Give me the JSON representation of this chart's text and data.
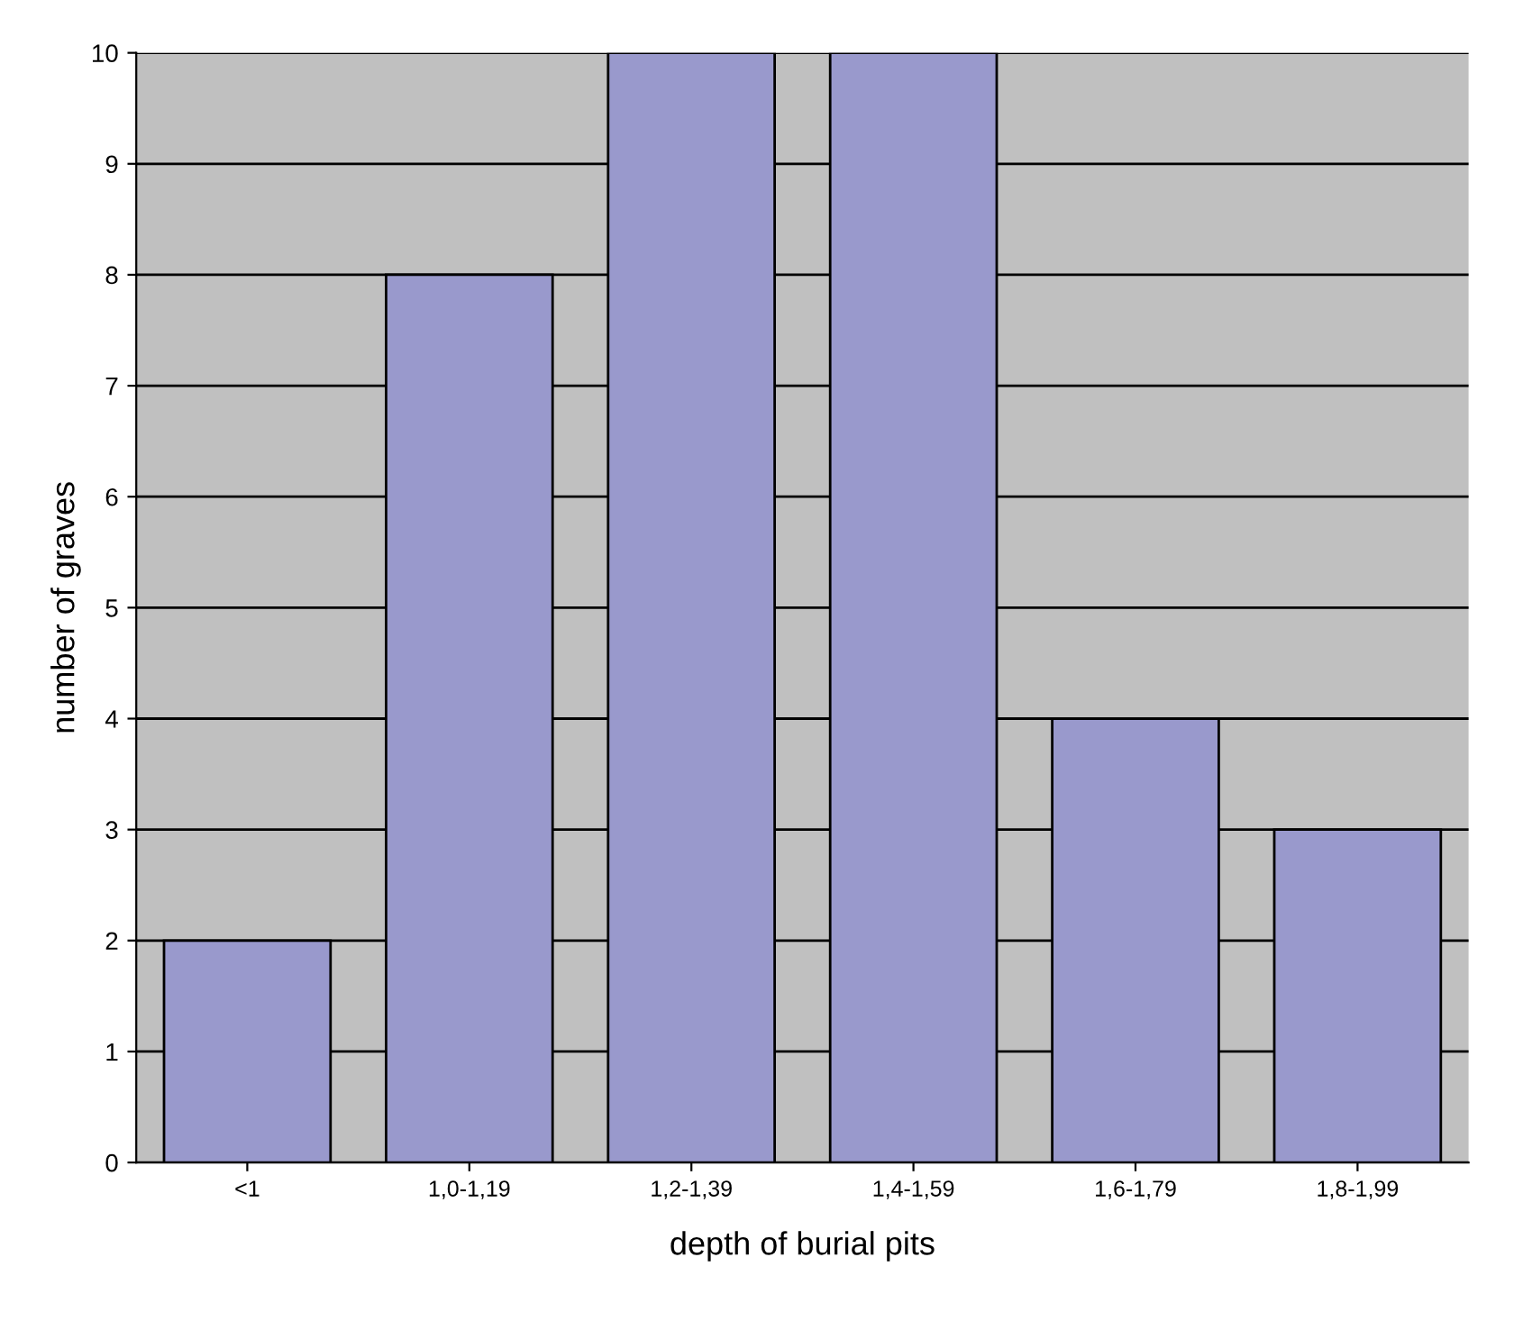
{
  "chart_data": {
    "type": "bar",
    "xlabel": "depth of burial pits",
    "ylabel": "number of graves",
    "categories": [
      "<1",
      "1,0-1,19",
      "1,2-1,39",
      "1,4-1,59",
      "1,6-1,79",
      "1,8-1,99"
    ],
    "values": [
      2,
      8,
      10,
      10,
      4,
      3
    ],
    "color": "#9999cc",
    "ylim": [
      0,
      10
    ],
    "yticks": [
      0,
      1,
      2,
      3,
      4,
      5,
      6,
      7,
      8,
      9,
      10
    ],
    "grid": "y"
  }
}
